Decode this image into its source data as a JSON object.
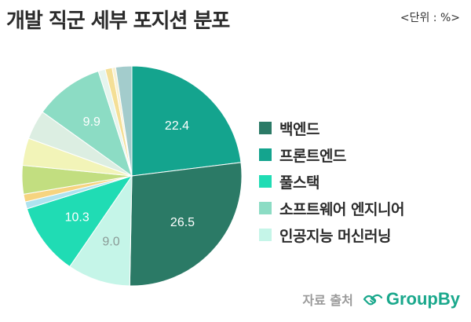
{
  "title": "개발 직군 세부 포지션 분포",
  "unit": "<단위 : %>",
  "source": {
    "label": "자료 출처",
    "brand": "GroupBy",
    "brand_color": "#1aa88c"
  },
  "chart_data": {
    "type": "pie",
    "title": "개발 직군 세부 포지션 분포",
    "legend_position": "right",
    "start_angle_deg": 0,
    "direction": "clockwise",
    "slices": [
      {
        "value": 22.4,
        "color": "#14a48e",
        "label": "22.4",
        "legend": "프론트엔드"
      },
      {
        "value": 26.5,
        "color": "#2b7a66",
        "label": "26.5",
        "legend": "백엔드"
      },
      {
        "value": 9.0,
        "color": "#c5f5e8",
        "label": "9.0",
        "legend": "인공지능 머신러닝"
      },
      {
        "value": 10.3,
        "color": "#20dcb4",
        "label": "10.3",
        "legend": "풀스택"
      },
      {
        "value": 1.0,
        "color": "#aee3ef",
        "label": ""
      },
      {
        "value": 1.1,
        "color": "#f6d480",
        "label": ""
      },
      {
        "value": 4.1,
        "color": "#c2de80",
        "label": ""
      },
      {
        "value": 3.9,
        "color": "#f2f4b8",
        "label": ""
      },
      {
        "value": 4.2,
        "color": "#dceee2",
        "label": ""
      },
      {
        "value": 9.9,
        "color": "#8cdcc4",
        "label": "9.9",
        "legend": "소프트웨어 엔지니어"
      },
      {
        "value": 1.0,
        "color": "#e6f5ee",
        "label": ""
      },
      {
        "value": 1.0,
        "color": "#f4df96",
        "label": ""
      },
      {
        "value": 0.5,
        "color": "#f8f1d2",
        "label": ""
      },
      {
        "value": 2.3,
        "color": "#a3cccc",
        "label": ""
      }
    ],
    "legend_order": [
      "백엔드",
      "프론트엔드",
      "풀스택",
      "소프트웨어 엔지니어",
      "인공지능 머신러닝"
    ]
  }
}
